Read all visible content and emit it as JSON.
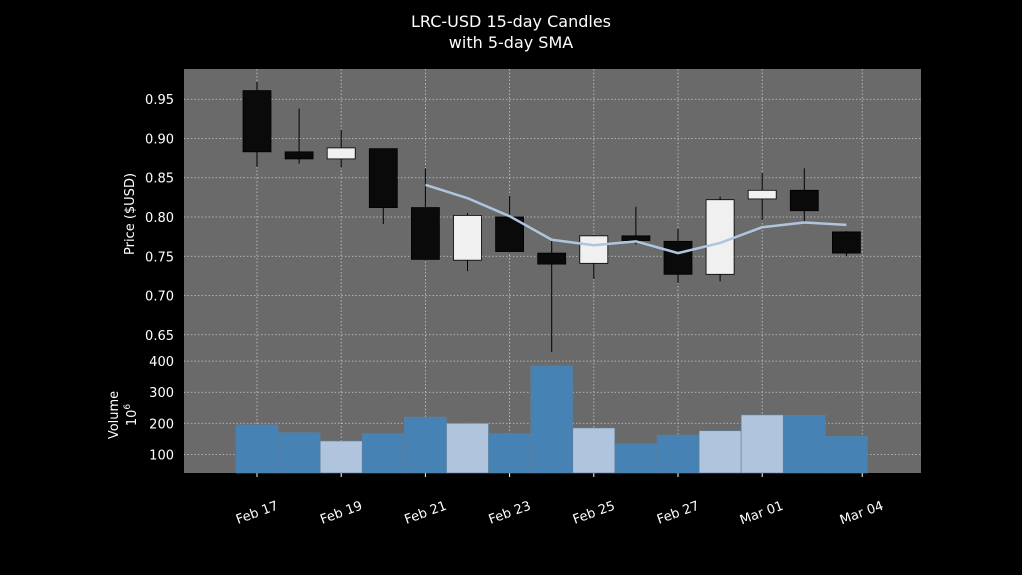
{
  "chart_data": {
    "type": "candlestick",
    "title": "LRC-USD 15-day Candles",
    "subtitle": "with 5-day SMA",
    "ylabel_price": "Price ($USD)",
    "ylabel_volume": "Volume",
    "volume_unit": "10",
    "volume_unit_exp": "6",
    "x_tick_labels": [
      "Feb 17",
      "Feb 19",
      "Feb 21",
      "Feb 23",
      "Feb 25",
      "Feb 27",
      "Mar 01",
      "Mar 04"
    ],
    "price_ticks": [
      "0.95",
      "0.90",
      "0.85",
      "0.80",
      "0.75",
      "0.70",
      "0.65"
    ],
    "volume_ticks": [
      "400",
      "300",
      "200",
      "100"
    ],
    "price_ylim": [
      0.6255,
      0.9885
    ],
    "volume_ylim": [
      40,
      423
    ],
    "grid": true,
    "colors": {
      "background": "#000000",
      "panel": "#6a6a6a",
      "grid": "#c8c8c8",
      "up": "#f0f0f0",
      "down": "#0a0a0a",
      "wick": "#000000",
      "sma": "#b0c4de",
      "vol_up": "#b0c4de",
      "vol_down": "#4682b4",
      "text": "#ffffff"
    },
    "candles": [
      {
        "date": "Feb 17",
        "open": 0.961,
        "high": 0.972,
        "low": 0.864,
        "close": 0.883,
        "volume": 195
      },
      {
        "date": "Feb 18",
        "open": 0.883,
        "high": 0.938,
        "low": 0.868,
        "close": 0.874,
        "volume": 170
      },
      {
        "date": "Feb 19",
        "open": 0.874,
        "high": 0.911,
        "low": 0.863,
        "close": 0.888,
        "volume": 143
      },
      {
        "date": "Feb 20",
        "open": 0.887,
        "high": 0.887,
        "low": 0.791,
        "close": 0.812,
        "volume": 167
      },
      {
        "date": "Feb 21",
        "open": 0.812,
        "high": 0.862,
        "low": 0.745,
        "close": 0.746,
        "volume": 220
      },
      {
        "date": "Feb 22",
        "open": 0.745,
        "high": 0.805,
        "low": 0.731,
        "close": 0.802,
        "volume": 200
      },
      {
        "date": "Feb 23",
        "open": 0.8,
        "high": 0.827,
        "low": 0.755,
        "close": 0.756,
        "volume": 167
      },
      {
        "date": "Feb 24",
        "open": 0.754,
        "high": 0.771,
        "low": 0.628,
        "close": 0.74,
        "volume": 385
      },
      {
        "date": "Feb 25",
        "open": 0.741,
        "high": 0.777,
        "low": 0.721,
        "close": 0.776,
        "volume": 185
      },
      {
        "date": "Feb 26",
        "open": 0.776,
        "high": 0.813,
        "low": 0.765,
        "close": 0.77,
        "volume": 134
      },
      {
        "date": "Feb 27",
        "open": 0.769,
        "high": 0.785,
        "low": 0.716,
        "close": 0.727,
        "volume": 162
      },
      {
        "date": "Feb 28",
        "open": 0.727,
        "high": 0.826,
        "low": 0.718,
        "close": 0.822,
        "volume": 176
      },
      {
        "date": "Mar 01",
        "open": 0.823,
        "high": 0.856,
        "low": 0.796,
        "close": 0.834,
        "volume": 227
      },
      {
        "date": "Mar 02",
        "open": 0.834,
        "high": 0.862,
        "low": 0.794,
        "close": 0.808,
        "volume": 226
      },
      {
        "date": "Mar 03",
        "open": 0.781,
        "high": 0.782,
        "low": 0.75,
        "close": 0.754,
        "volume": 158
      }
    ],
    "sma_5": [
      {
        "date": "Feb 21",
        "value": 0.841
      },
      {
        "date": "Feb 22",
        "value": 0.824
      },
      {
        "date": "Feb 23",
        "value": 0.801
      },
      {
        "date": "Feb 24",
        "value": 0.771
      },
      {
        "date": "Feb 25",
        "value": 0.764
      },
      {
        "date": "Feb 26",
        "value": 0.769
      },
      {
        "date": "Feb 27",
        "value": 0.754
      },
      {
        "date": "Feb 28",
        "value": 0.767
      },
      {
        "date": "Mar 01",
        "value": 0.787
      },
      {
        "date": "Mar 02",
        "value": 0.793
      },
      {
        "date": "Mar 03",
        "value": 0.79
      }
    ]
  }
}
